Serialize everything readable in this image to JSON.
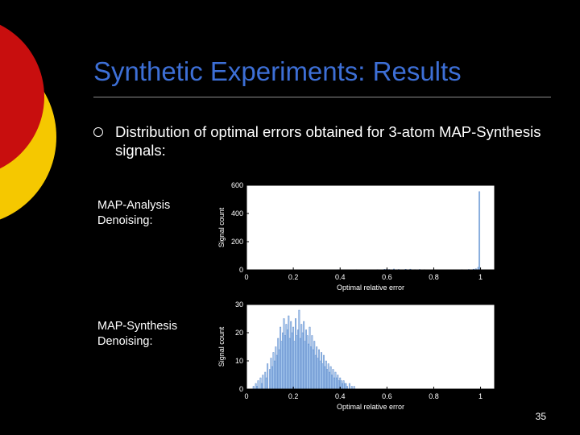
{
  "slide": {
    "title": "Synthetic Experiments: Results",
    "bullet": "Distribution of optimal errors obtained for 3-atom MAP-Synthesis signals:",
    "page_number": "35",
    "colors": {
      "title": "#3d6fd6",
      "deco_red": "#c80e0e",
      "deco_yellow": "#f5c800",
      "hist_fill": "#a6c8ee"
    }
  },
  "chart_data": [
    {
      "type": "bar",
      "panel_label": "MAP-Analysis Denoising:",
      "xlabel": "Optimal relative error",
      "ylabel": "Signal count",
      "xlim": [
        0,
        1.06
      ],
      "ylim": [
        0,
        600
      ],
      "xticks": [
        0,
        0.2,
        0.4,
        0.6,
        0.8,
        1
      ],
      "yticks": [
        0,
        200,
        400,
        600
      ],
      "bin_width": 0.005,
      "bins": [
        [
          0.005,
          1
        ],
        [
          0.14,
          1
        ],
        [
          0.18,
          1
        ],
        [
          0.23,
          1
        ],
        [
          0.3,
          1
        ],
        [
          0.39,
          2
        ],
        [
          0.42,
          1
        ],
        [
          0.47,
          2
        ],
        [
          0.52,
          1
        ],
        [
          0.56,
          2
        ],
        [
          0.59,
          4
        ],
        [
          0.6,
          5
        ],
        [
          0.61,
          3
        ],
        [
          0.63,
          6
        ],
        [
          0.65,
          3
        ],
        [
          0.68,
          4
        ],
        [
          0.7,
          5
        ],
        [
          0.72,
          2
        ],
        [
          0.74,
          3
        ],
        [
          0.76,
          2
        ],
        [
          0.8,
          2
        ],
        [
          0.84,
          1
        ],
        [
          0.88,
          1
        ],
        [
          0.92,
          2
        ],
        [
          0.95,
          3
        ],
        [
          0.97,
          5
        ],
        [
          0.98,
          8
        ],
        [
          0.99,
          18
        ],
        [
          0.995,
          555
        ]
      ]
    },
    {
      "type": "bar",
      "panel_label": "MAP-Synthesis Denoising:",
      "xlabel": "Optimal relative error",
      "ylabel": "Signal count",
      "xlim": [
        0,
        1.06
      ],
      "ylim": [
        0,
        30
      ],
      "xticks": [
        0,
        0.2,
        0.4,
        0.6,
        0.8,
        1
      ],
      "yticks": [
        0,
        10,
        20,
        30
      ],
      "bin_width": 0.005,
      "bins": [
        [
          0.03,
          1
        ],
        [
          0.04,
          2
        ],
        [
          0.045,
          1
        ],
        [
          0.05,
          3
        ],
        [
          0.06,
          4
        ],
        [
          0.065,
          2
        ],
        [
          0.07,
          5
        ],
        [
          0.08,
          6
        ],
        [
          0.085,
          4
        ],
        [
          0.09,
          9
        ],
        [
          0.1,
          7
        ],
        [
          0.105,
          11
        ],
        [
          0.11,
          8
        ],
        [
          0.115,
          13
        ],
        [
          0.12,
          10
        ],
        [
          0.125,
          15
        ],
        [
          0.13,
          12
        ],
        [
          0.135,
          18
        ],
        [
          0.14,
          14
        ],
        [
          0.145,
          22
        ],
        [
          0.15,
          17
        ],
        [
          0.155,
          20
        ],
        [
          0.16,
          25
        ],
        [
          0.165,
          19
        ],
        [
          0.17,
          23
        ],
        [
          0.175,
          21
        ],
        [
          0.18,
          26
        ],
        [
          0.185,
          18
        ],
        [
          0.19,
          24
        ],
        [
          0.195,
          20
        ],
        [
          0.2,
          22
        ],
        [
          0.205,
          17
        ],
        [
          0.21,
          25
        ],
        [
          0.215,
          19
        ],
        [
          0.22,
          21
        ],
        [
          0.225,
          28
        ],
        [
          0.23,
          18
        ],
        [
          0.235,
          23
        ],
        [
          0.24,
          20
        ],
        [
          0.245,
          24
        ],
        [
          0.25,
          17
        ],
        [
          0.255,
          21
        ],
        [
          0.26,
          19
        ],
        [
          0.265,
          16
        ],
        [
          0.27,
          22
        ],
        [
          0.275,
          15
        ],
        [
          0.28,
          19
        ],
        [
          0.285,
          14
        ],
        [
          0.29,
          17
        ],
        [
          0.295,
          12
        ],
        [
          0.3,
          15
        ],
        [
          0.305,
          11
        ],
        [
          0.31,
          14
        ],
        [
          0.315,
          10
        ],
        [
          0.32,
          13
        ],
        [
          0.325,
          9
        ],
        [
          0.33,
          12
        ],
        [
          0.335,
          8
        ],
        [
          0.34,
          10
        ],
        [
          0.345,
          7
        ],
        [
          0.35,
          9
        ],
        [
          0.355,
          6
        ],
        [
          0.36,
          8
        ],
        [
          0.365,
          5
        ],
        [
          0.37,
          7
        ],
        [
          0.375,
          4
        ],
        [
          0.38,
          6
        ],
        [
          0.385,
          4
        ],
        [
          0.39,
          5
        ],
        [
          0.395,
          3
        ],
        [
          0.4,
          4
        ],
        [
          0.405,
          3
        ],
        [
          0.41,
          2
        ],
        [
          0.415,
          3
        ],
        [
          0.42,
          2
        ],
        [
          0.425,
          2
        ],
        [
          0.43,
          1
        ],
        [
          0.44,
          2
        ],
        [
          0.45,
          1
        ],
        [
          0.46,
          1
        ]
      ]
    }
  ]
}
